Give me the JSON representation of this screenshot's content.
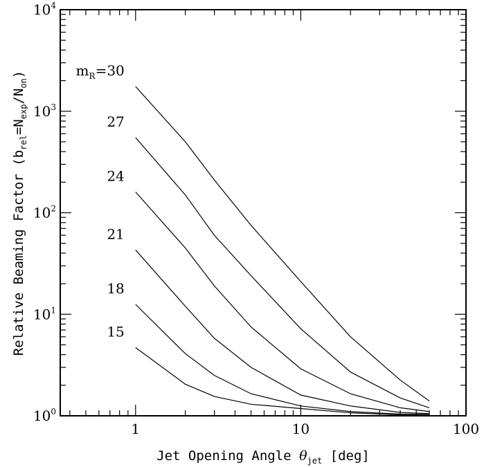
{
  "chart_data": {
    "type": "line",
    "xscale": "log",
    "yscale": "log",
    "xlim": [
      0.35,
      100
    ],
    "ylim": [
      1,
      10000
    ],
    "xticklabels": [
      {
        "value": 1,
        "label": "1"
      },
      {
        "value": 10,
        "label": "10"
      },
      {
        "value": 100,
        "label": "100"
      }
    ],
    "yticklabels": [
      {
        "value": 1,
        "base": "10",
        "exp": "0"
      },
      {
        "value": 10,
        "base": "10",
        "exp": "1"
      },
      {
        "value": 100,
        "base": "10",
        "exp": "2"
      },
      {
        "value": 1000,
        "base": "10",
        "exp": "3"
      },
      {
        "value": 10000,
        "base": "10",
        "exp": "4"
      }
    ],
    "xlabel": {
      "prefix": "Jet Opening Angle ",
      "symbol": "θ",
      "symbol_sub": "jet",
      "suffix": " [deg]"
    },
    "ylabel": {
      "prefix": "Relative Beaming Factor (b",
      "sub1": "rel",
      "mid1": "=N",
      "sub2": "exp",
      "mid2": "/N",
      "sub3": "on",
      "suffix": ")"
    },
    "label_prefix": {
      "main": "m",
      "sub": "R",
      "eq": "="
    },
    "x": [
      1,
      2,
      3,
      5,
      10,
      20,
      40,
      60
    ],
    "series": [
      {
        "label": "30",
        "values": [
          1750,
          500,
          210,
          75,
          21,
          6,
          2.25,
          1.4
        ]
      },
      {
        "label": "27",
        "values": [
          550,
          150,
          60,
          24,
          7.2,
          2.7,
          1.5,
          1.2
        ]
      },
      {
        "label": "24",
        "values": [
          160,
          45,
          19,
          7.5,
          2.9,
          1.65,
          1.2,
          1.1
        ]
      },
      {
        "label": "21",
        "values": [
          43,
          12,
          5.8,
          3,
          1.6,
          1.25,
          1.08,
          1.05
        ]
      },
      {
        "label": "18",
        "values": [
          12.5,
          4.1,
          2.5,
          1.65,
          1.25,
          1.1,
          1.04,
          1.03
        ]
      },
      {
        "label": "15",
        "values": [
          4.7,
          2.05,
          1.55,
          1.3,
          1.18,
          1.07,
          1.02,
          1.01
        ]
      }
    ]
  }
}
